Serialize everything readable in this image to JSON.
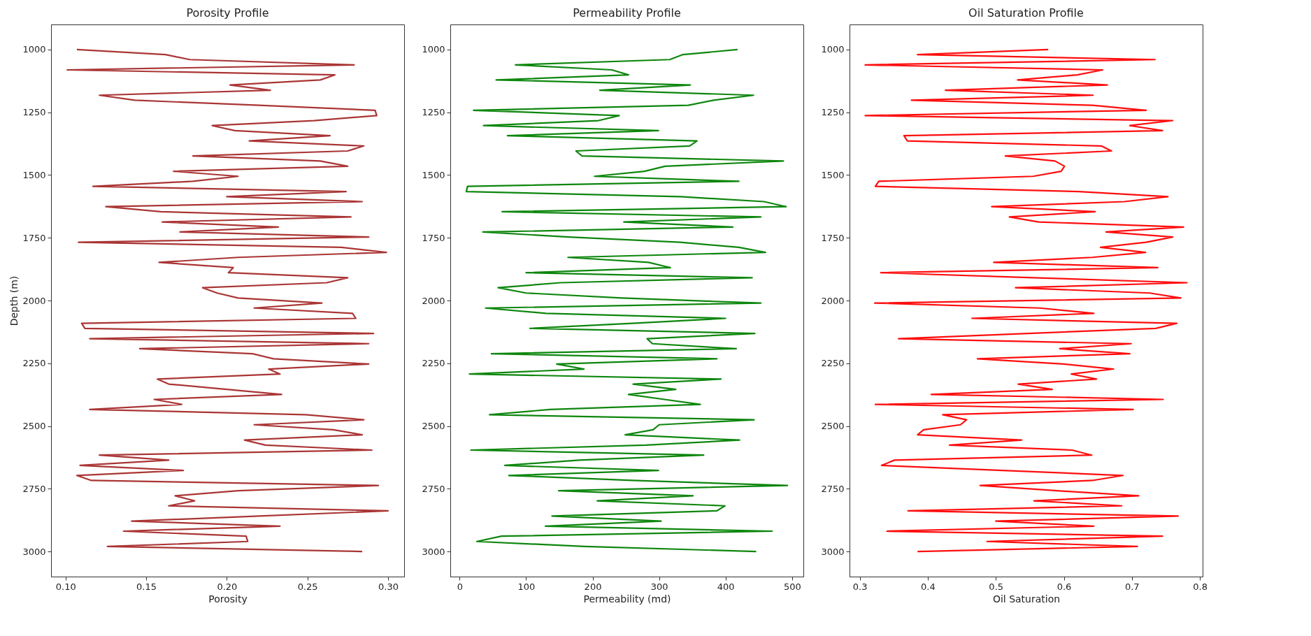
{
  "chart_data": [
    {
      "type": "line",
      "title": "Porosity Profile",
      "xlabel": "Porosity",
      "ylabel": "Depth (m)",
      "color": "#a52a2a",
      "xlim": [
        0.091,
        0.31
      ],
      "xticks": [
        {
          "value": 0.1,
          "label": "0.10"
        },
        {
          "value": 0.15,
          "label": "0.15"
        },
        {
          "value": 0.2,
          "label": "0.20"
        },
        {
          "value": 0.25,
          "label": "0.25"
        },
        {
          "value": 0.3,
          "label": "0.30"
        }
      ],
      "ylim": [
        3100,
        900
      ],
      "yticks": [
        1000,
        1250,
        1500,
        1750,
        2000,
        2250,
        2500,
        2750,
        3000
      ],
      "x": [
        0.107,
        0.162,
        0.177,
        0.279,
        0.101,
        0.267,
        0.258,
        0.202,
        0.227,
        0.121,
        0.143,
        0.22,
        0.292,
        0.293,
        0.254,
        0.191,
        0.205,
        0.264,
        0.214,
        0.285,
        0.275,
        0.179,
        0.258,
        0.275,
        0.167,
        0.207,
        0.179,
        0.117,
        0.274,
        0.2,
        0.284,
        0.125,
        0.159,
        0.277,
        0.16,
        0.232,
        0.171,
        0.288,
        0.108,
        0.271,
        0.299,
        0.207,
        0.158,
        0.204,
        0.201,
        0.275,
        0.262,
        0.185,
        0.194,
        0.207,
        0.259,
        0.217,
        0.278,
        0.28,
        0.11,
        0.112,
        0.291,
        0.115,
        0.288,
        0.146,
        0.216,
        0.229,
        0.288,
        0.226,
        0.233,
        0.157,
        0.164,
        0.2,
        0.234,
        0.155,
        0.172,
        0.115,
        0.249,
        0.285,
        0.217,
        0.266,
        0.284,
        0.211,
        0.224,
        0.29,
        0.121,
        0.164,
        0.109,
        0.173,
        0.107,
        0.116,
        0.294,
        0.207,
        0.168,
        0.18,
        0.164,
        0.3,
        0.22,
        0.141,
        0.233,
        0.136,
        0.212,
        0.213,
        0.126,
        0.284
      ],
      "values": [
        1000,
        1020,
        1040,
        1061,
        1081,
        1101,
        1121,
        1141,
        1162,
        1182,
        1202,
        1222,
        1242,
        1263,
        1283,
        1303,
        1323,
        1343,
        1364,
        1384,
        1404,
        1424,
        1444,
        1465,
        1485,
        1505,
        1525,
        1545,
        1566,
        1586,
        1606,
        1626,
        1646,
        1667,
        1687,
        1707,
        1727,
        1747,
        1768,
        1788,
        1808,
        1828,
        1848,
        1869,
        1889,
        1909,
        1929,
        1949,
        1970,
        1990,
        2010,
        2030,
        2051,
        2071,
        2091,
        2111,
        2131,
        2152,
        2172,
        2192,
        2212,
        2232,
        2253,
        2273,
        2293,
        2313,
        2333,
        2354,
        2374,
        2394,
        2414,
        2434,
        2455,
        2475,
        2495,
        2515,
        2535,
        2556,
        2576,
        2596,
        2616,
        2636,
        2657,
        2677,
        2697,
        2717,
        2737,
        2758,
        2778,
        2798,
        2818,
        2838,
        2859,
        2879,
        2899,
        2919,
        2939,
        2960,
        2980,
        3000
      ]
    },
    {
      "type": "line",
      "title": "Permeability Profile",
      "xlabel": "Permeability (md)",
      "color": "#008000",
      "xlim": [
        -14,
        517
      ],
      "xticks": [
        0,
        100,
        200,
        300,
        400,
        500
      ],
      "ylim": [
        3100,
        900
      ],
      "yticks": [
        1000,
        1250,
        1500,
        1750,
        2000,
        2250,
        2500,
        2750,
        3000
      ],
      "x": [
        418,
        336,
        316,
        84,
        229,
        254,
        55,
        347,
        211,
        442,
        382,
        344,
        21,
        240,
        209,
        36,
        299,
        72,
        357,
        346,
        175,
        184,
        487,
        309,
        278,
        203,
        420,
        12,
        10,
        332,
        458,
        491,
        64,
        453,
        247,
        411,
        35,
        164,
        332,
        420,
        460,
        163,
        284,
        317,
        100,
        440,
        152,
        58,
        100,
        244,
        453,
        39,
        130,
        400,
        260,
        106,
        444,
        282,
        290,
        416,
        48,
        387,
        146,
        187,
        15,
        393,
        261,
        325,
        254,
        308,
        362,
        136,
        45,
        443,
        300,
        291,
        249,
        421,
        280,
        17,
        367,
        180,
        68,
        299,
        74,
        260,
        493,
        149,
        351,
        207,
        399,
        387,
        139,
        303,
        129,
        470,
        63,
        26,
        188,
        446
      ],
      "values": [
        1000,
        1020,
        1040,
        1061,
        1081,
        1101,
        1121,
        1141,
        1162,
        1182,
        1202,
        1222,
        1242,
        1263,
        1283,
        1303,
        1323,
        1343,
        1364,
        1384,
        1404,
        1424,
        1444,
        1465,
        1485,
        1505,
        1525,
        1545,
        1566,
        1586,
        1606,
        1626,
        1646,
        1667,
        1687,
        1707,
        1727,
        1747,
        1768,
        1788,
        1808,
        1828,
        1848,
        1869,
        1889,
        1909,
        1929,
        1949,
        1970,
        1990,
        2010,
        2030,
        2051,
        2071,
        2091,
        2111,
        2131,
        2152,
        2172,
        2192,
        2212,
        2232,
        2253,
        2273,
        2293,
        2313,
        2333,
        2354,
        2374,
        2394,
        2414,
        2434,
        2455,
        2475,
        2495,
        2515,
        2535,
        2556,
        2576,
        2596,
        2616,
        2636,
        2657,
        2677,
        2697,
        2717,
        2737,
        2758,
        2778,
        2798,
        2818,
        2838,
        2859,
        2879,
        2899,
        2919,
        2939,
        2960,
        2980,
        3000
      ]
    },
    {
      "type": "line",
      "title": "Oil Saturation Profile",
      "xlabel": "Oil Saturation",
      "color": "#ff0000",
      "xlim": [
        0.285,
        0.804
      ],
      "xticks": [
        0.3,
        0.4,
        0.5,
        0.6,
        0.7,
        0.8
      ],
      "ylim": [
        3100,
        900
      ],
      "yticks": [
        1000,
        1250,
        1500,
        1750,
        2000,
        2250,
        2500,
        2750,
        3000
      ],
      "x": [
        0.577,
        0.385,
        0.734,
        0.308,
        0.657,
        0.62,
        0.532,
        0.664,
        0.426,
        0.643,
        0.376,
        0.642,
        0.721,
        0.308,
        0.76,
        0.697,
        0.745,
        0.365,
        0.37,
        0.655,
        0.67,
        0.514,
        0.587,
        0.601,
        0.596,
        0.555,
        0.328,
        0.323,
        0.622,
        0.753,
        0.689,
        0.494,
        0.646,
        0.52,
        0.563,
        0.776,
        0.662,
        0.76,
        0.721,
        0.654,
        0.72,
        0.642,
        0.497,
        0.738,
        0.331,
        0.555,
        0.781,
        0.529,
        0.726,
        0.772,
        0.322,
        0.565,
        0.644,
        0.465,
        0.766,
        0.735,
        0.547,
        0.357,
        0.699,
        0.594,
        0.697,
        0.473,
        0.6,
        0.673,
        0.611,
        0.648,
        0.533,
        0.583,
        0.405,
        0.746,
        0.323,
        0.702,
        0.422,
        0.457,
        0.448,
        0.394,
        0.385,
        0.538,
        0.432,
        0.612,
        0.641,
        0.351,
        0.332,
        0.51,
        0.687,
        0.642,
        0.477,
        0.59,
        0.71,
        0.556,
        0.685,
        0.371,
        0.768,
        0.5,
        0.644,
        0.34,
        0.745,
        0.487,
        0.708,
        0.385
      ],
      "values": [
        1000,
        1020,
        1040,
        1061,
        1081,
        1101,
        1121,
        1141,
        1162,
        1182,
        1202,
        1222,
        1242,
        1263,
        1283,
        1303,
        1323,
        1343,
        1364,
        1384,
        1404,
        1424,
        1444,
        1465,
        1485,
        1505,
        1525,
        1545,
        1566,
        1586,
        1606,
        1626,
        1646,
        1667,
        1687,
        1707,
        1727,
        1747,
        1768,
        1788,
        1808,
        1828,
        1848,
        1869,
        1889,
        1909,
        1929,
        1949,
        1970,
        1990,
        2010,
        2030,
        2051,
        2071,
        2091,
        2111,
        2131,
        2152,
        2172,
        2192,
        2212,
        2232,
        2253,
        2273,
        2293,
        2313,
        2333,
        2354,
        2374,
        2394,
        2414,
        2434,
        2455,
        2475,
        2495,
        2515,
        2535,
        2556,
        2576,
        2596,
        2616,
        2636,
        2657,
        2677,
        2697,
        2717,
        2737,
        2758,
        2778,
        2798,
        2818,
        2838,
        2859,
        2879,
        2899,
        2919,
        2939,
        2960,
        2980,
        3000
      ]
    }
  ]
}
